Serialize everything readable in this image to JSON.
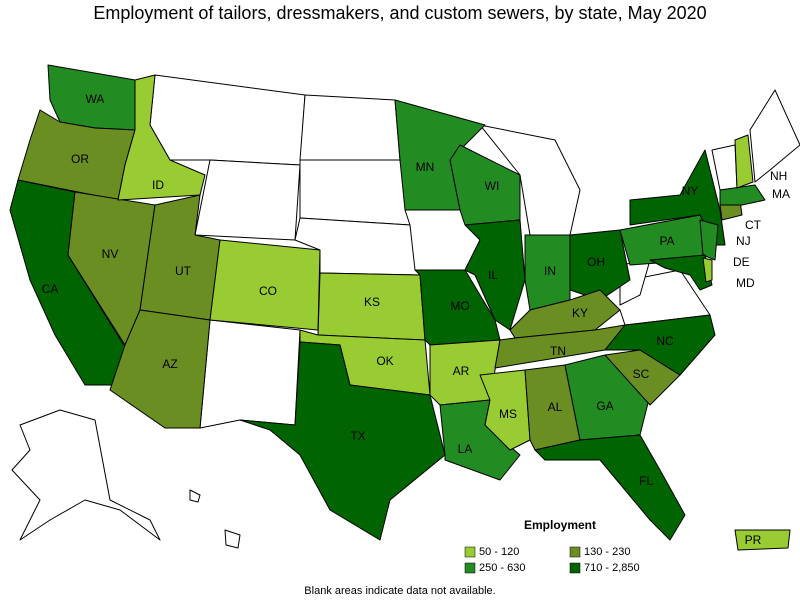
{
  "title": "Employment of tailors, dressmakers, and custom sewers, by state, May 2020",
  "legend": {
    "title": "Employment",
    "items": [
      {
        "label": "50 - 120",
        "color": "#99cc33"
      },
      {
        "label": "130 - 230",
        "color": "#6b8e23"
      },
      {
        "label": "250 - 630",
        "color": "#228b22"
      },
      {
        "label": "710 - 2,850",
        "color": "#006400"
      }
    ]
  },
  "states": [
    {
      "label": "WA",
      "color": "#228b22"
    },
    {
      "label": "OR",
      "color": "#6b8e23"
    },
    {
      "label": "CA",
      "color": "#006400"
    },
    {
      "label": "NV",
      "color": "#6b8e23"
    },
    {
      "label": "ID",
      "color": "#99cc33"
    },
    {
      "label": "UT",
      "color": "#6b8e23"
    },
    {
      "label": "AZ",
      "color": "#6b8e23"
    },
    {
      "label": "CO",
      "color": "#99cc33"
    },
    {
      "label": "KS",
      "color": "#99cc33"
    },
    {
      "label": "OK",
      "color": "#99cc33"
    },
    {
      "label": "TX",
      "color": "#006400"
    },
    {
      "label": "MN",
      "color": "#228b22"
    },
    {
      "label": "MO",
      "color": "#006400"
    },
    {
      "label": "AR",
      "color": "#99cc33"
    },
    {
      "label": "LA",
      "color": "#228b22"
    },
    {
      "label": "WI",
      "color": "#228b22"
    },
    {
      "label": "IL",
      "color": "#006400"
    },
    {
      "label": "IN",
      "color": "#228b22"
    },
    {
      "label": "OH",
      "color": "#006400"
    },
    {
      "label": "KY",
      "color": "#6b8e23"
    },
    {
      "label": "TN",
      "color": "#6b8e23"
    },
    {
      "label": "MS",
      "color": "#99cc33"
    },
    {
      "label": "AL",
      "color": "#6b8e23"
    },
    {
      "label": "GA",
      "color": "#228b22"
    },
    {
      "label": "FL",
      "color": "#006400"
    },
    {
      "label": "SC",
      "color": "#6b8e23"
    },
    {
      "label": "NC",
      "color": "#006400"
    },
    {
      "label": "PA",
      "color": "#228b22"
    },
    {
      "label": "NY",
      "color": "#006400"
    },
    {
      "label": "NJ",
      "color": "#228b22"
    },
    {
      "label": "MD",
      "color": "#006400"
    },
    {
      "label": "DE",
      "color": "#99cc33"
    },
    {
      "label": "CT",
      "color": "#6b8e23"
    },
    {
      "label": "MA",
      "color": "#228b22"
    },
    {
      "label": "NH",
      "color": "#99cc33"
    },
    {
      "label": "PR",
      "color": "#99cc33"
    }
  ],
  "footnote": "Blank areas indicate data not available."
}
